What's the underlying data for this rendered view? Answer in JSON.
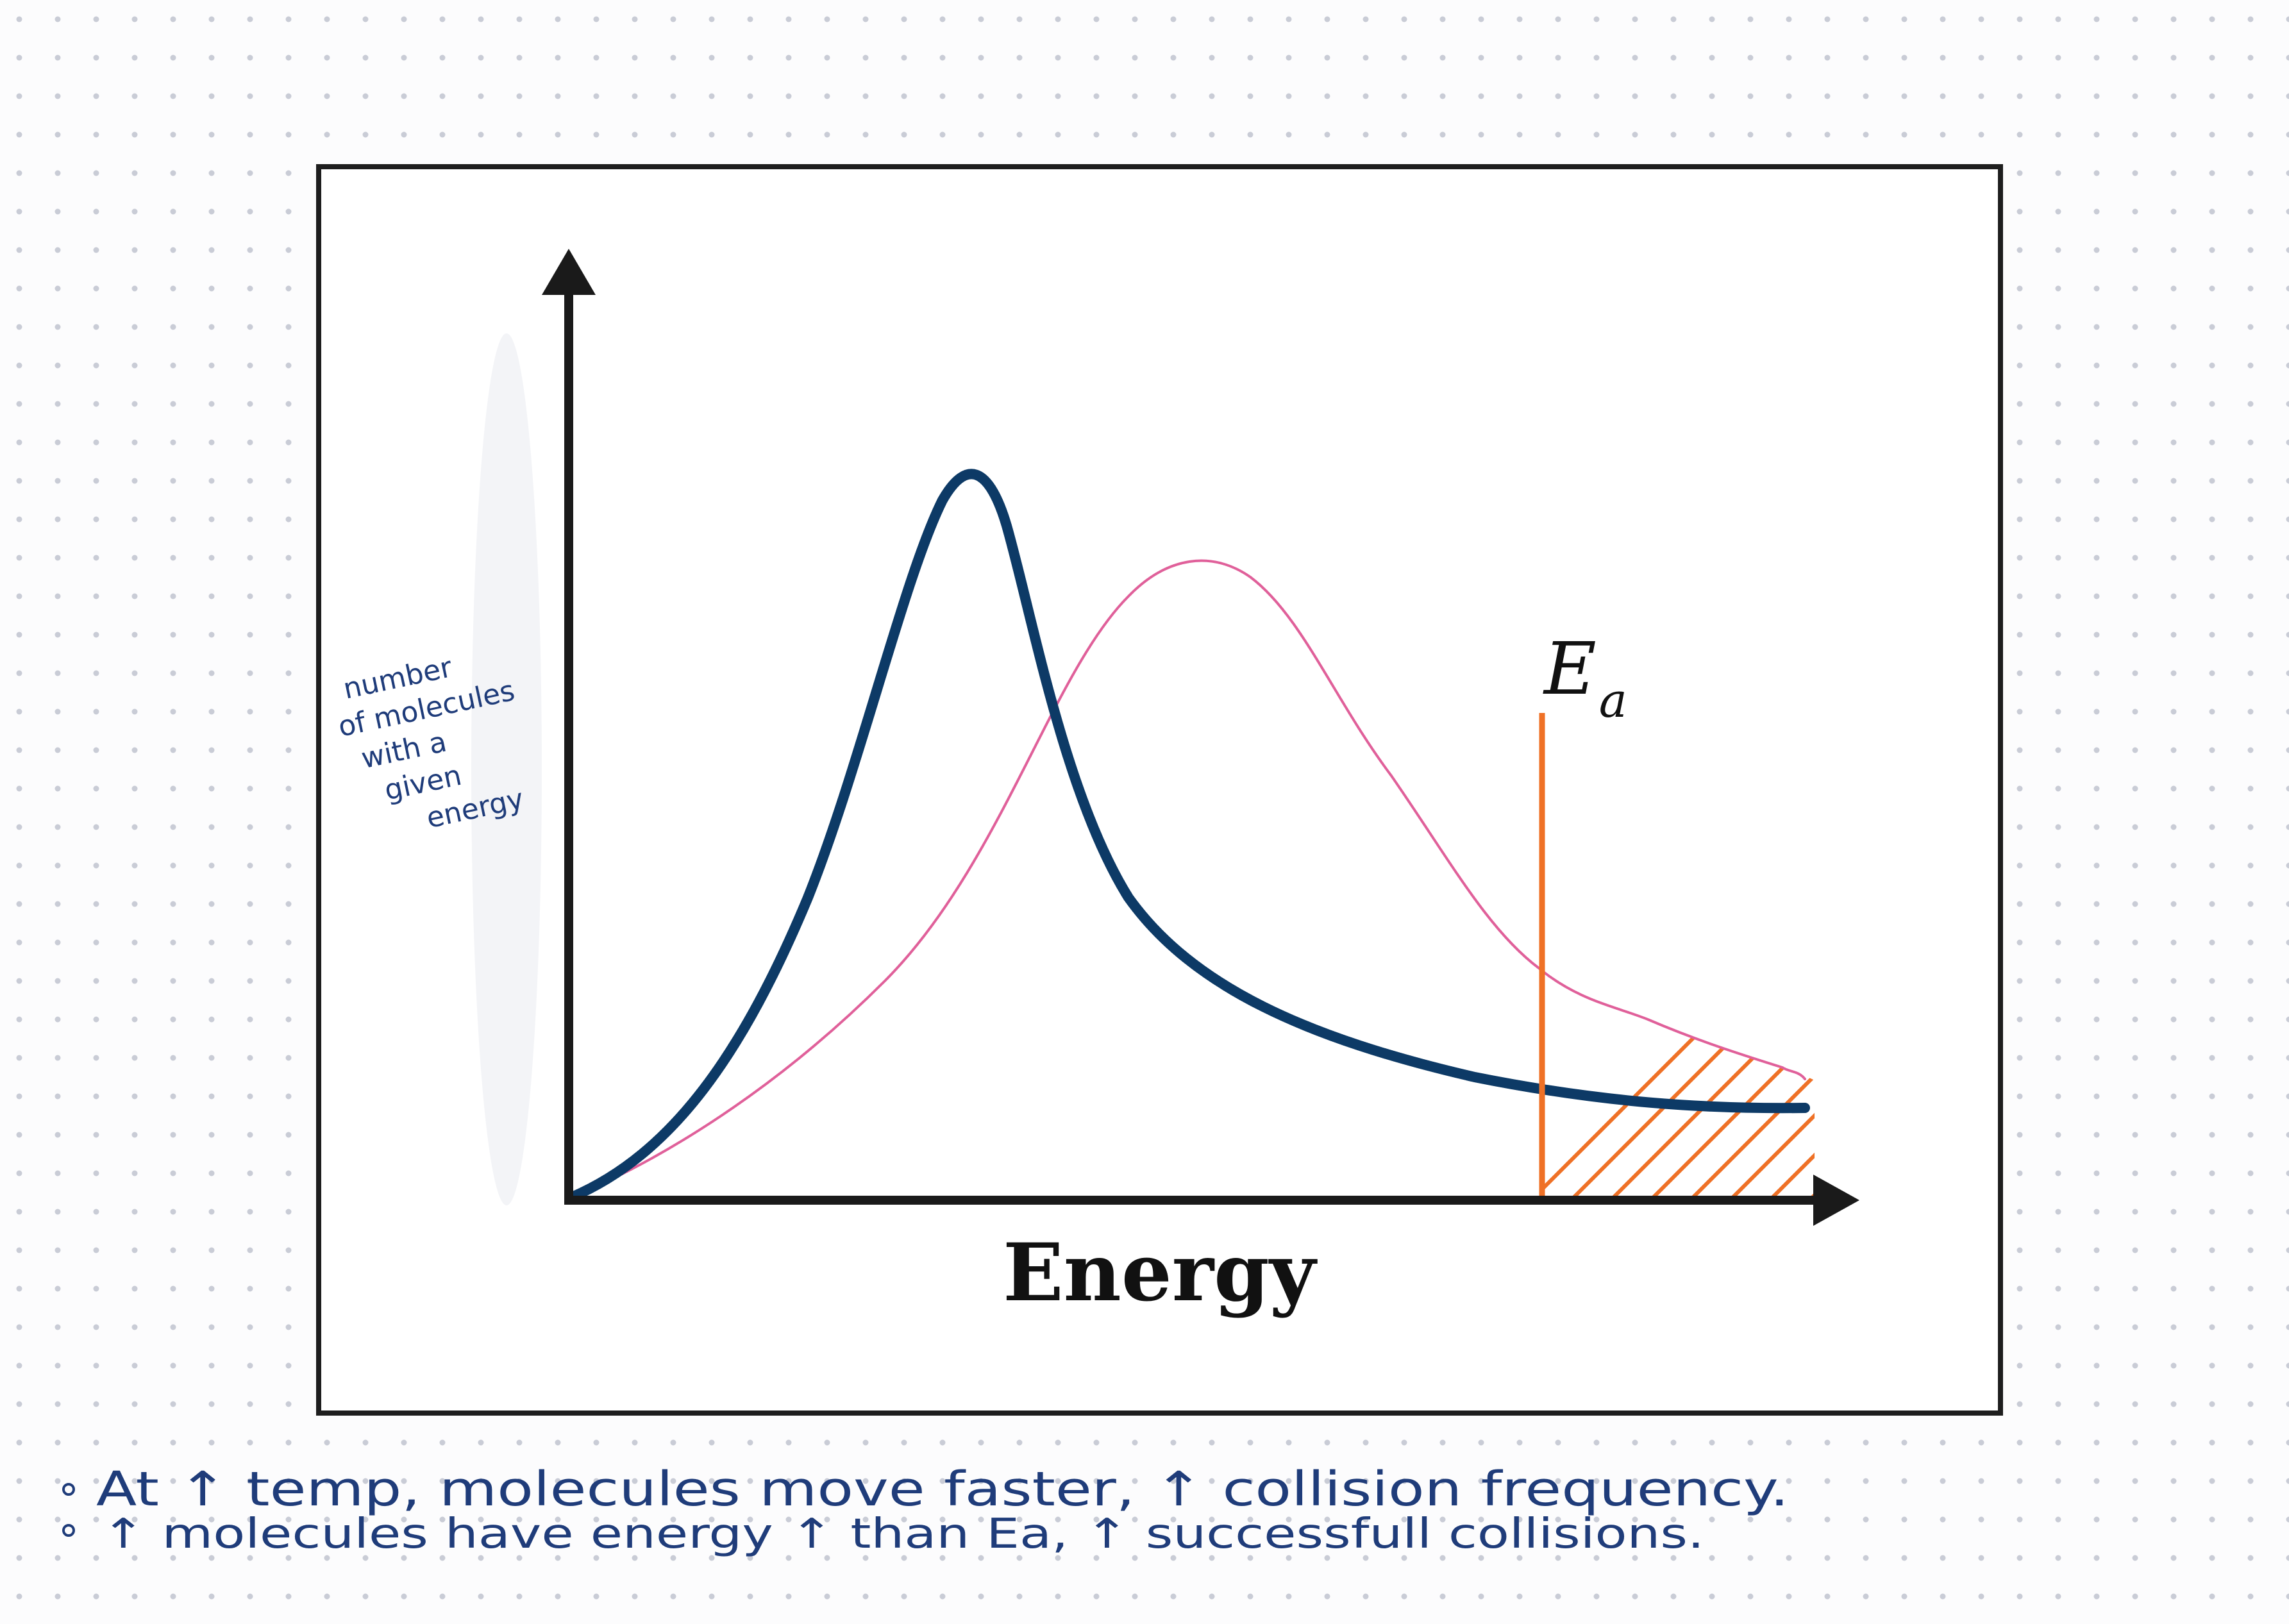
{
  "colors": {
    "page_background": "#fcfcfd",
    "dot_grid": "#c9ccd6",
    "frame": "#1e1e1e",
    "axes": "#1a1a1a",
    "low_temp_curve": "#0d3a66",
    "high_temp_curve": "#e0609a",
    "activation_line": "#ef7126",
    "handwriting_ink": "#1f3c7a"
  },
  "diagram": {
    "x_axis_label": "Energy",
    "activation_energy_label": {
      "symbol": "E",
      "subscript": "a"
    },
    "y_axis_annotation": [
      "number",
      "of molecules",
      "with a",
      "given",
      "energy"
    ]
  },
  "notes": [
    "At ↑ temp, molecules move faster, ↑ collision frequency.",
    "↑ molecules have energy ↑ than Ea, ↑ successfull collisions."
  ]
}
